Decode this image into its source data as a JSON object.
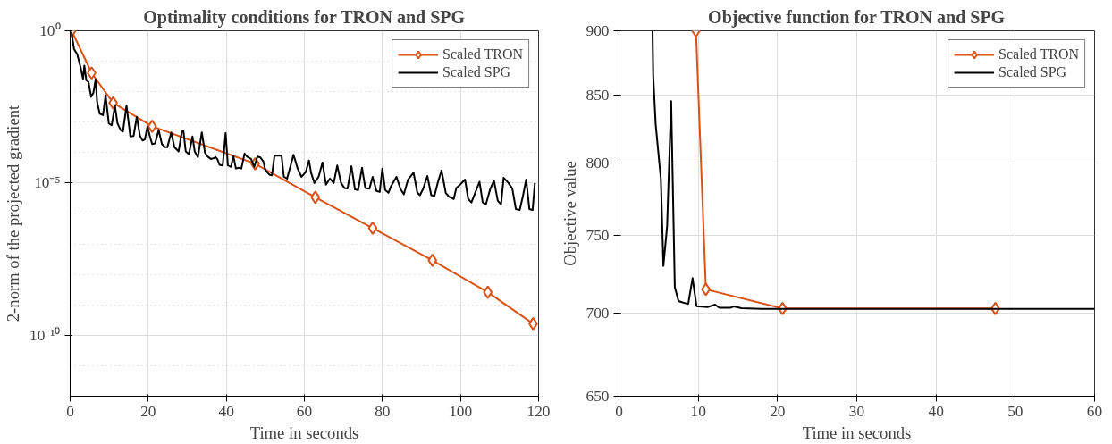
{
  "chart_data": [
    {
      "type": "line",
      "title": "Optimality conditions for TRON and SPG",
      "xlabel": "Time in seconds",
      "ylabel": "2-norm of the projected gradient",
      "log": "y",
      "grid": true,
      "legend": "top right",
      "line_style": "solid",
      "xlim": [
        0,
        120
      ],
      "xticks": [
        0,
        20,
        40,
        60,
        80,
        100,
        120
      ],
      "ylim": [
        1e-12,
        1
      ],
      "yticks": [
        {
          "value": 1e-10,
          "label": "10⁻¹⁰"
        },
        {
          "value": 1e-05,
          "label": "10⁻⁵"
        },
        {
          "value": 1,
          "label": "10⁰"
        }
      ],
      "series": [
        {
          "name": "Scaled TRON",
          "color": "#d95319",
          "marker": "diamond",
          "x": [
            0.4,
            5.5,
            11,
            21,
            47.4,
            62.8,
            77.5,
            92.8,
            107,
            118.6
          ],
          "values": [
            1,
            0.041,
            0.0043,
            0.00073,
            4.3e-05,
            3.4e-06,
            3.3e-07,
            2.9e-08,
            2.6e-09,
            2.4e-10
          ]
        },
        {
          "name": "Scaled SPG",
          "color": "#000000",
          "marker": "none",
          "x": [
            0.33,
            0.99,
            1.81,
            2.64,
            3.3,
            3.63,
            4.12,
            4.7,
            5.36,
            5.94,
            6.51,
            6.92,
            7.58,
            8.41,
            9.07,
            9.89,
            10.63,
            11.46,
            12.12,
            12.94,
            13.52,
            14.43,
            15.42,
            16.24,
            17.07,
            17.89,
            18.55,
            19.13,
            19.79,
            20.53,
            21.02,
            21.76,
            22.67,
            23.5,
            24.32,
            24.9,
            25.89,
            26.71,
            27.78,
            28.61,
            29.02,
            29.6,
            30.42,
            31.33,
            31.9,
            32.73,
            33.72,
            34.54,
            35.2,
            36.03,
            36.85,
            37.26,
            37.68,
            38.25,
            39.08,
            39.82,
            40.4,
            41.22,
            41.8,
            42.46,
            43.2,
            43.86,
            44.68,
            45.34,
            46.33,
            47.16,
            47.98,
            48.64,
            49.47,
            50.04,
            51.03,
            51.69,
            52.35,
            53.34,
            54.16,
            54.74,
            55.56,
            56.39,
            57.21,
            58.28,
            59.27,
            60.35,
            61.17,
            61.75,
            62.57,
            63.64,
            64.63,
            65.54,
            66.53,
            67.52,
            68.42,
            69.41,
            70.24,
            71.06,
            72.05,
            72.96,
            73.78,
            74.77,
            75.6,
            76.67,
            77.49,
            78.48,
            79.31,
            79.97,
            80.71,
            81.53,
            82.19,
            83.59,
            84.67,
            85.49,
            86.56,
            87.96,
            88.95,
            89.61,
            90.44,
            91.51,
            92.5,
            93.32,
            94.15,
            95.14,
            96.21,
            97.03,
            98.27,
            98.93,
            99.92,
            101.15,
            101.98,
            102.8,
            103.63,
            104.86,
            105.69,
            106.51,
            107.58,
            108.57,
            109.56,
            110.39,
            111.05,
            112.28,
            113.27,
            114.18,
            115.17,
            116.0,
            116.82,
            117.65,
            118.47,
            119.05
          ],
          "values": [
            0.93,
            0.25,
            0.17,
            0.065,
            0.026,
            0.072,
            0.024,
            0.021,
            0.0068,
            0.0091,
            0.025,
            0.0044,
            0.0019,
            0.0017,
            0.0076,
            0.00091,
            0.00079,
            0.0035,
            0.00091,
            0.00055,
            0.00049,
            0.0035,
            0.00034,
            0.00035,
            0.0015,
            0.00035,
            0.00025,
            0.00027,
            0.00071,
            0.0003,
            0.00019,
            0.0002,
            0.00055,
            0.00019,
            0.00015,
            0.00015,
            0.00046,
            0.00015,
            0.00011,
            0.00049,
            0.00051,
            0.00011,
            8.9e-05,
            0.00034,
            0.00011,
            7.1e-05,
            0.00046,
            0.0001,
            7.4e-05,
            6.2e-05,
            6.6e-05,
            7.1e-05,
            6.2e-05,
            4e-05,
            3.8e-05,
            0.00044,
            3.8e-05,
            3.4e-05,
            7.9e-05,
            3e-05,
            3.2e-05,
            3e-05,
            9.3e-05,
            7.4e-05,
            6.2e-05,
            3.4e-05,
            7.4e-05,
            7.1e-05,
            5.2e-05,
            2.6e-05,
            1.9e-05,
            1.8e-05,
            7.9e-05,
            8.1e-05,
            7.9e-05,
            1.6e-05,
            1.4e-05,
            3.4e-05,
            8.5e-05,
            3e-05,
            1.6e-05,
            2.3e-05,
            5.5e-05,
            2.1e-05,
            1e-05,
            1.6e-05,
            4.7e-05,
            8.9e-06,
            1.4e-05,
            1e-05,
            3.8e-05,
            1e-05,
            6.9e-06,
            6.6e-06,
            3.6e-05,
            6.2e-06,
            5.9e-06,
            3.2e-05,
            6.9e-06,
            6.5e-06,
            1.6e-05,
            5.5e-06,
            5.1e-06,
            3e-05,
            5.9e-06,
            4.8e-06,
            7.8e-06,
            1.6e-05,
            6.2e-06,
            4.3e-06,
            1.3e-05,
            2.2e-05,
            4.8e-06,
            4e-06,
            6.5e-06,
            1.7e-05,
            4e-06,
            3.8e-06,
            1e-05,
            2.6e-05,
            4.8e-06,
            3.6e-06,
            3e-06,
            6.9e-06,
            8.9e-06,
            1.3e-05,
            3e-06,
            2.3e-06,
            4.3e-06,
            1.1e-05,
            2.3e-06,
            2e-06,
            6.2e-06,
            1.2e-05,
            2.6e-06,
            2e-06,
            1.5e-05,
            1e-05,
            6.6e-06,
            1.4e-06,
            1.3e-06,
            3.8e-06,
            1.3e-05,
            1.4e-06,
            1.3e-06,
            1e-05
          ]
        }
      ]
    },
    {
      "type": "line",
      "title": "Objective function for TRON and SPG",
      "xlabel": "Time in seconds",
      "ylabel": "Objective value",
      "log": "y",
      "grid": true,
      "legend": "top right",
      "line_style": "solid",
      "xlim": [
        0,
        60
      ],
      "xticks": [
        0,
        10,
        20,
        30,
        40,
        50,
        60
      ],
      "ylim": [
        650,
        900
      ],
      "yticks": [
        650,
        700,
        750,
        800,
        850,
        900
      ],
      "series": [
        {
          "name": "Scaled TRON",
          "color": "#d95319",
          "marker": "diamond",
          "x": [
            9.71,
            10.96,
            20.63,
            47.48
          ],
          "values": [
            900,
            714.9,
            702.8,
            702.8
          ]
        },
        {
          "name": "Scaled SPG",
          "color": "#000000",
          "marker": "none",
          "x": [
            4.23,
            4.31,
            4.62,
            5.28,
            5.6,
            6.07,
            6.58,
            7.04,
            7.51,
            8.02,
            8.73,
            9.28,
            9.78,
            11.15,
            12.13,
            12.64,
            14.09,
            14.48,
            15.46,
            18.0,
            20.35,
            60
          ],
          "values": [
            900,
            865.1,
            828.3,
            788.8,
            730.0,
            756.3,
            845.4,
            716.2,
            707.5,
            706.6,
            705.6,
            722.1,
            704.3,
            703.7,
            705.2,
            703.3,
            703.3,
            704.1,
            703.0,
            702.6,
            702.6,
            702.6
          ]
        }
      ]
    }
  ]
}
